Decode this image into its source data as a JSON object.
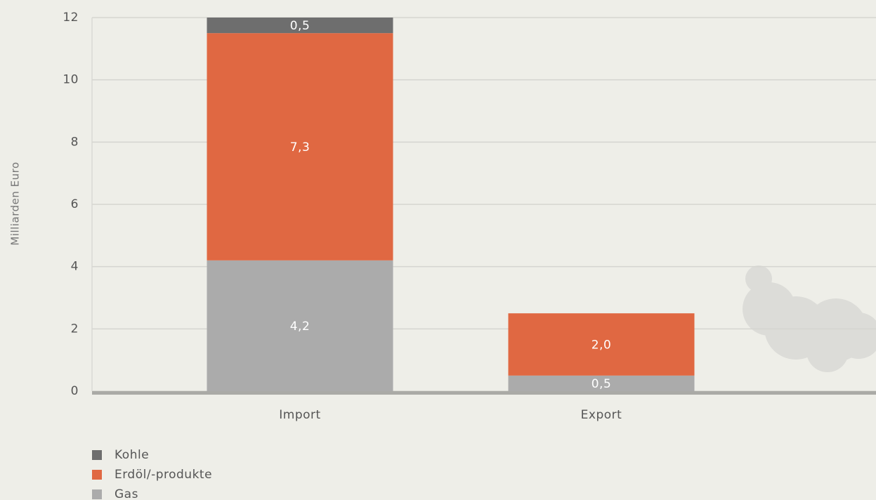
{
  "chart_data": {
    "type": "stacked-bar",
    "y_label": "Milliarden Euro",
    "categories": [
      "Import",
      "Export"
    ],
    "series": [
      {
        "name": "Gas",
        "color": "#ababab",
        "values": [
          4.2,
          0.5
        ],
        "value_labels": [
          "4,2",
          "0,5"
        ]
      },
      {
        "name": "Erdöl/-produkte",
        "color": "#e06842",
        "values": [
          7.3,
          2.0
        ],
        "value_labels": [
          "7,3",
          "2,0"
        ]
      },
      {
        "name": "Kohle",
        "color": "#6e6e6e",
        "values": [
          0.5,
          null
        ],
        "value_labels": [
          "0,5",
          null
        ]
      }
    ],
    "ylim": [
      0,
      12
    ],
    "yticks": [
      0,
      2,
      4,
      6,
      8,
      10,
      12
    ],
    "grid": true,
    "legend": "bottom-left"
  }
}
